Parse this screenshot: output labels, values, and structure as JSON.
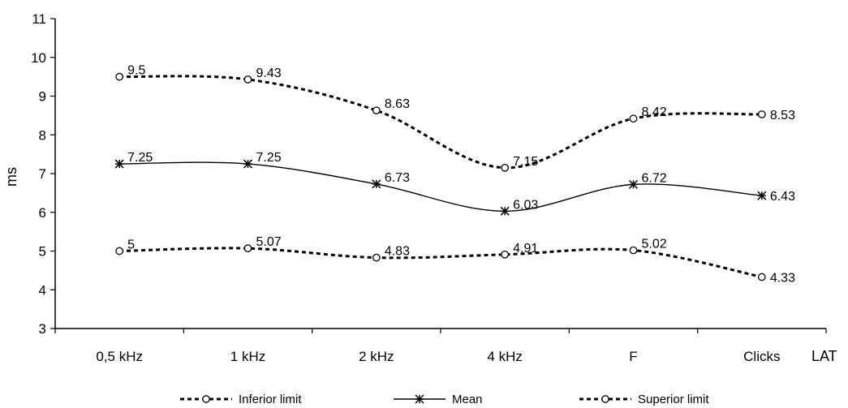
{
  "chart_data": {
    "type": "line",
    "title": "",
    "xlabel": "LAT",
    "ylabel": "ms",
    "ylim": [
      3,
      11
    ],
    "yticks": [
      3,
      4,
      5,
      6,
      7,
      8,
      9,
      10,
      11
    ],
    "grid": false,
    "legend_position": "bottom",
    "categories": [
      "0,5 kHz",
      "1 kHz",
      "2 kHz",
      "4 kHz",
      "F",
      "Clicks"
    ],
    "series": [
      {
        "name": "Inferior limit",
        "values": [
          5,
          5.07,
          4.83,
          4.91,
          5.02,
          4.33
        ],
        "labels": [
          "5",
          "5.07",
          "4.83",
          "4.91",
          "5.02",
          "4.33"
        ],
        "line_style": "dashed",
        "marker": "circle"
      },
      {
        "name": "Mean",
        "values": [
          7.25,
          7.25,
          6.73,
          6.03,
          6.72,
          6.43
        ],
        "labels": [
          "7.25",
          "7.25",
          "6.73",
          "6.03",
          "6.72",
          "6.43"
        ],
        "line_style": "solid",
        "marker": "asterisk"
      },
      {
        "name": "Superior limit",
        "values": [
          9.5,
          9.43,
          8.63,
          7.15,
          8.42,
          8.53
        ],
        "labels": [
          "9.5",
          "9.43",
          "8.63",
          "7.15",
          "8.42",
          "8.53"
        ],
        "line_style": "dashed",
        "marker": "circle"
      }
    ]
  }
}
